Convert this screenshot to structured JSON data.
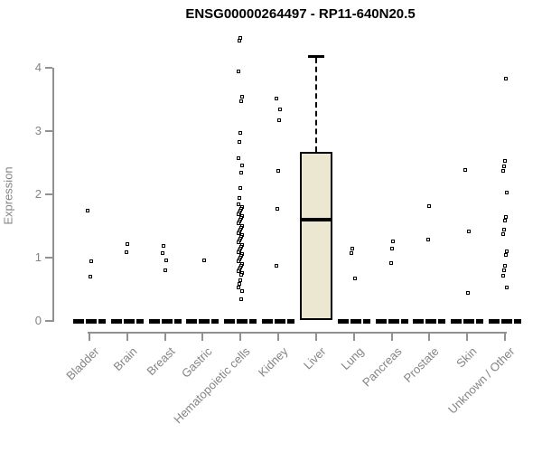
{
  "title": "ENSG00000264497 - RP11-640N20.5",
  "y_axis": {
    "label": "Expression",
    "ticks": [
      0,
      1,
      2,
      3,
      4
    ]
  },
  "colors": {
    "box_fill": "#ece7d1",
    "axis": "#919191",
    "axis_text": "#848484",
    "data": "#000000"
  },
  "chart_data": {
    "type": "boxplot-scatter",
    "title": "ENSG00000264497 - RP11-640N20.5",
    "xlabel": "",
    "ylabel": "Expression",
    "ylim": [
      0,
      4.5
    ],
    "grid": false,
    "categories": [
      "Bladder",
      "Brain",
      "Breast",
      "Gastric",
      "Hematopoietic cells",
      "Kidney",
      "Liver",
      "Lung",
      "Pancreas",
      "Prostate",
      "Skin",
      "Unknown / Other"
    ],
    "series": [
      {
        "name": "Bladder",
        "zero_bar": true,
        "points": [
          1.74,
          0.94,
          0.7
        ]
      },
      {
        "name": "Brain",
        "zero_bar": true,
        "points": [
          1.21,
          1.08
        ]
      },
      {
        "name": "Breast",
        "zero_bar": true,
        "points": [
          1.18,
          1.06,
          0.95,
          0.8
        ]
      },
      {
        "name": "Gastric",
        "zero_bar": true,
        "points": [
          0.95
        ]
      },
      {
        "name": "Hematopoietic cells",
        "zero_bar": true,
        "points": [
          4.47,
          4.42,
          3.94,
          3.53,
          3.47,
          2.97,
          2.82,
          2.56,
          2.45,
          2.34,
          2.09,
          1.93,
          1.83,
          1.8,
          1.77,
          1.74,
          1.71,
          1.68,
          1.65,
          1.62,
          1.59,
          1.56,
          1.53,
          1.5,
          1.47,
          1.44,
          1.41,
          1.38,
          1.35,
          1.32,
          1.29,
          1.26,
          1.23,
          1.2,
          1.17,
          1.14,
          1.11,
          1.08,
          1.05,
          1.02,
          0.99,
          0.96,
          0.93,
          0.9,
          0.87,
          0.84,
          0.81,
          0.78,
          0.75,
          0.72,
          0.63,
          0.58,
          0.52,
          0.47,
          0.33
        ]
      },
      {
        "name": "Kidney",
        "zero_bar": true,
        "points": [
          3.51,
          3.34,
          3.16,
          2.36,
          1.77,
          0.86
        ]
      },
      {
        "name": "Liver",
        "zero_bar": false,
        "points": [],
        "box": {
          "whisker_high": 4.18,
          "q3": 2.67,
          "median": 1.6,
          "q1": 0.02
        }
      },
      {
        "name": "Lung",
        "zero_bar": true,
        "points": [
          1.13,
          1.06,
          0.67
        ]
      },
      {
        "name": "Pancreas",
        "zero_bar": true,
        "points": [
          1.25,
          1.14,
          0.91
        ]
      },
      {
        "name": "Prostate",
        "zero_bar": true,
        "points": [
          1.81,
          1.28
        ]
      },
      {
        "name": "Skin",
        "zero_bar": true,
        "points": [
          2.38,
          1.41,
          0.43
        ]
      },
      {
        "name": "Unknown / Other",
        "zero_bar": true,
        "points": [
          3.82,
          2.52,
          2.44,
          2.36,
          2.02,
          1.64,
          1.58,
          1.44,
          1.36,
          1.1,
          1.03,
          0.86,
          0.8,
          0.71,
          0.52
        ]
      }
    ]
  }
}
